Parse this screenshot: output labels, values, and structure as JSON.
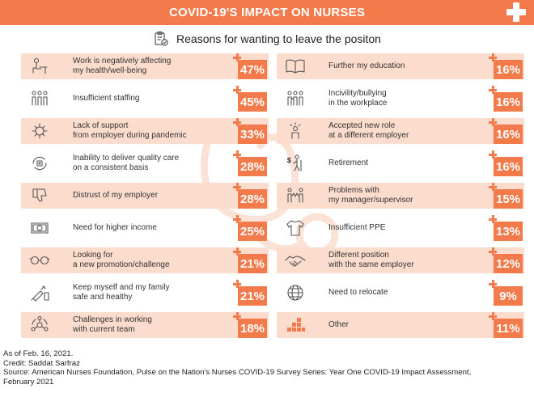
{
  "header": {
    "title": "COVID-19'S IMPACT ON NURSES",
    "subtitle": "Reasons for wanting to leave the positon"
  },
  "colors": {
    "accent": "#f37a4a",
    "row_shade": "#fcdccd",
    "icon": "#555555"
  },
  "chart_data": {
    "type": "bar",
    "title": "COVID-19'S IMPACT ON NURSES",
    "subtitle": "Reasons for wanting to leave the positon",
    "unit": "%",
    "left": [
      {
        "lines": [
          "Work is negatively affecting",
          "my health/well-being"
        ],
        "value": "47%",
        "icon": "person-at-desk-icon"
      },
      {
        "lines": [
          "Insufficient staffing"
        ],
        "value": "45%",
        "icon": "staff-group-icon"
      },
      {
        "lines": [
          "Lack of support",
          "from employer during pandemic"
        ],
        "value": "33%",
        "icon": "virus-icon"
      },
      {
        "lines": [
          "Inability to deliver quality care",
          "on a consistent basis"
        ],
        "value": "28%",
        "icon": "care-cycle-icon"
      },
      {
        "lines": [
          "Distrust of my employer"
        ],
        "value": "28%",
        "icon": "thumbs-down-icon"
      },
      {
        "lines": [
          "Need for higher income"
        ],
        "value": "25%",
        "icon": "banknote-icon"
      },
      {
        "lines": [
          "Looking for",
          "a new promotion/challenge"
        ],
        "value": "21%",
        "icon": "glasses-icon"
      },
      {
        "lines": [
          "Keep myself and my family",
          "safe and healthy"
        ],
        "value": "21%",
        "icon": "syringe-vial-icon"
      },
      {
        "lines": [
          "Challenges in working",
          "with current team"
        ],
        "value": "18%",
        "icon": "team-network-icon"
      }
    ],
    "right": [
      {
        "lines": [
          "Further my education"
        ],
        "value": "16%",
        "icon": "open-book-icon"
      },
      {
        "lines": [
          "Incivility/bullying",
          "in the workplace"
        ],
        "value": "16%",
        "icon": "bullying-group-icon"
      },
      {
        "lines": [
          "Accepted new role",
          "at a different employer"
        ],
        "value": "16%",
        "icon": "idea-person-icon"
      },
      {
        "lines": [
          "Retirement"
        ],
        "value": "16%",
        "icon": "retirement-icon"
      },
      {
        "lines": [
          "Problems with",
          "my manager/supervisor"
        ],
        "value": "15%",
        "icon": "conflict-icon"
      },
      {
        "lines": [
          "Insufficient PPE"
        ],
        "value": "13%",
        "icon": "gown-icon"
      },
      {
        "lines": [
          "Different position",
          "with the same employer"
        ],
        "value": "12%",
        "icon": "handshake-icon"
      },
      {
        "lines": [
          "Need to relocate"
        ],
        "value": "9%",
        "icon": "globe-icon"
      },
      {
        "lines": [
          "Other"
        ],
        "value": "11%",
        "icon": "blocks-icon"
      }
    ]
  },
  "footnotes": [
    "As of Feb. 16, 2021.",
    "Credit: Saddat Sarfraz",
    "Source: American Nurses Foundation, Pulse on the Nation's Nurses COVID-19 Survey Series: Year One COVID-19 Impact Assessment,",
    "February 2021"
  ]
}
